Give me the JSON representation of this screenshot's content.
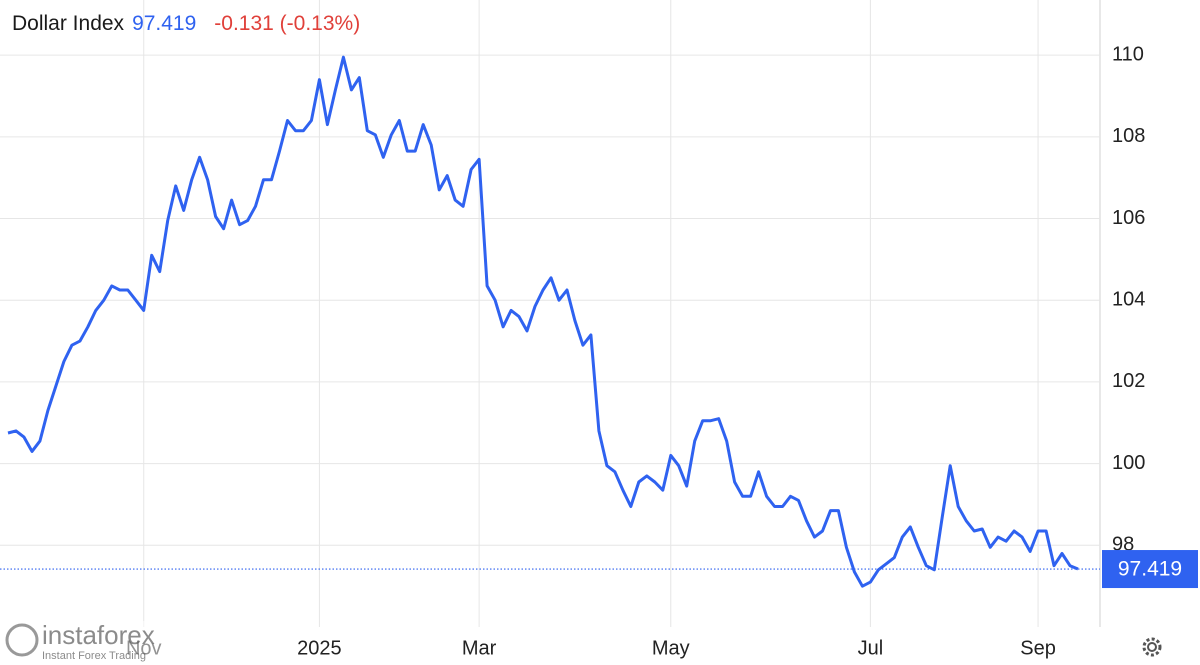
{
  "chart_data": {
    "type": "line",
    "title": "Dollar Index",
    "last_value": 97.419,
    "change": "-0.131 (-0.13%)",
    "watermark": {
      "name": "instaforex",
      "tagline": "Instant Forex Trading"
    },
    "color": "#2f62f0",
    "grid": true,
    "ylim": [
      96,
      111.35
    ],
    "yticks": [
      98,
      100,
      102,
      104,
      106,
      108,
      110
    ],
    "categories": [
      null,
      null,
      null,
      null,
      null,
      null,
      null,
      null,
      null,
      null,
      null,
      null,
      null,
      null,
      null,
      null,
      null,
      "Nov",
      null,
      null,
      null,
      null,
      null,
      null,
      null,
      null,
      null,
      null,
      null,
      null,
      null,
      null,
      null,
      null,
      null,
      null,
      null,
      null,
      null,
      "2025",
      null,
      null,
      null,
      null,
      null,
      null,
      null,
      null,
      null,
      null,
      null,
      null,
      null,
      null,
      null,
      null,
      null,
      null,
      null,
      "Mar",
      null,
      null,
      null,
      null,
      null,
      null,
      null,
      null,
      null,
      null,
      null,
      null,
      null,
      null,
      null,
      null,
      null,
      null,
      null,
      null,
      null,
      null,
      null,
      "May",
      null,
      null,
      null,
      null,
      null,
      null,
      null,
      null,
      null,
      null,
      null,
      null,
      null,
      null,
      null,
      null,
      null,
      null,
      null,
      null,
      null,
      null,
      null,
      null,
      "Jul",
      null,
      null,
      null,
      null,
      null,
      null,
      null,
      null,
      null,
      null,
      null,
      null,
      null,
      null,
      null,
      null,
      null,
      null,
      null,
      null,
      "Sep",
      null,
      null,
      null,
      null,
      null
    ],
    "values": [
      100.75,
      100.8,
      100.65,
      100.3,
      100.55,
      101.3,
      101.9,
      102.5,
      102.9,
      103.0,
      103.35,
      103.75,
      104.0,
      104.35,
      104.25,
      104.25,
      104.0,
      103.75,
      105.1,
      104.7,
      105.95,
      106.8,
      106.2,
      106.95,
      107.5,
      106.95,
      106.05,
      105.75,
      106.45,
      105.85,
      105.95,
      106.3,
      106.95,
      106.95,
      107.65,
      108.4,
      108.15,
      108.15,
      108.4,
      109.4,
      108.3,
      109.15,
      109.95,
      109.15,
      109.45,
      108.15,
      108.05,
      107.5,
      108.05,
      108.4,
      107.65,
      107.65,
      108.3,
      107.8,
      106.7,
      107.05,
      106.45,
      106.3,
      107.2,
      107.45,
      104.35,
      104.0,
      103.35,
      103.75,
      103.6,
      103.25,
      103.85,
      104.25,
      104.55,
      104.0,
      104.25,
      103.5,
      102.9,
      103.15,
      100.8,
      99.95,
      99.8,
      99.35,
      98.95,
      99.55,
      99.7,
      99.55,
      99.35,
      100.2,
      99.95,
      99.45,
      100.55,
      101.05,
      101.05,
      101.1,
      100.55,
      99.55,
      99.2,
      99.2,
      99.8,
      99.2,
      98.95,
      98.95,
      99.2,
      99.1,
      98.6,
      98.2,
      98.35,
      98.85,
      98.85,
      97.95,
      97.35,
      97.0,
      97.1,
      97.4,
      97.55,
      97.7,
      98.2,
      98.45,
      97.95,
      97.5,
      97.4,
      98.7,
      99.95,
      98.95,
      98.6,
      98.35,
      98.4,
      97.95,
      98.2,
      98.1,
      98.35,
      98.2,
      97.85,
      98.35,
      98.35,
      97.5,
      97.8,
      97.5,
      97.419
    ]
  }
}
